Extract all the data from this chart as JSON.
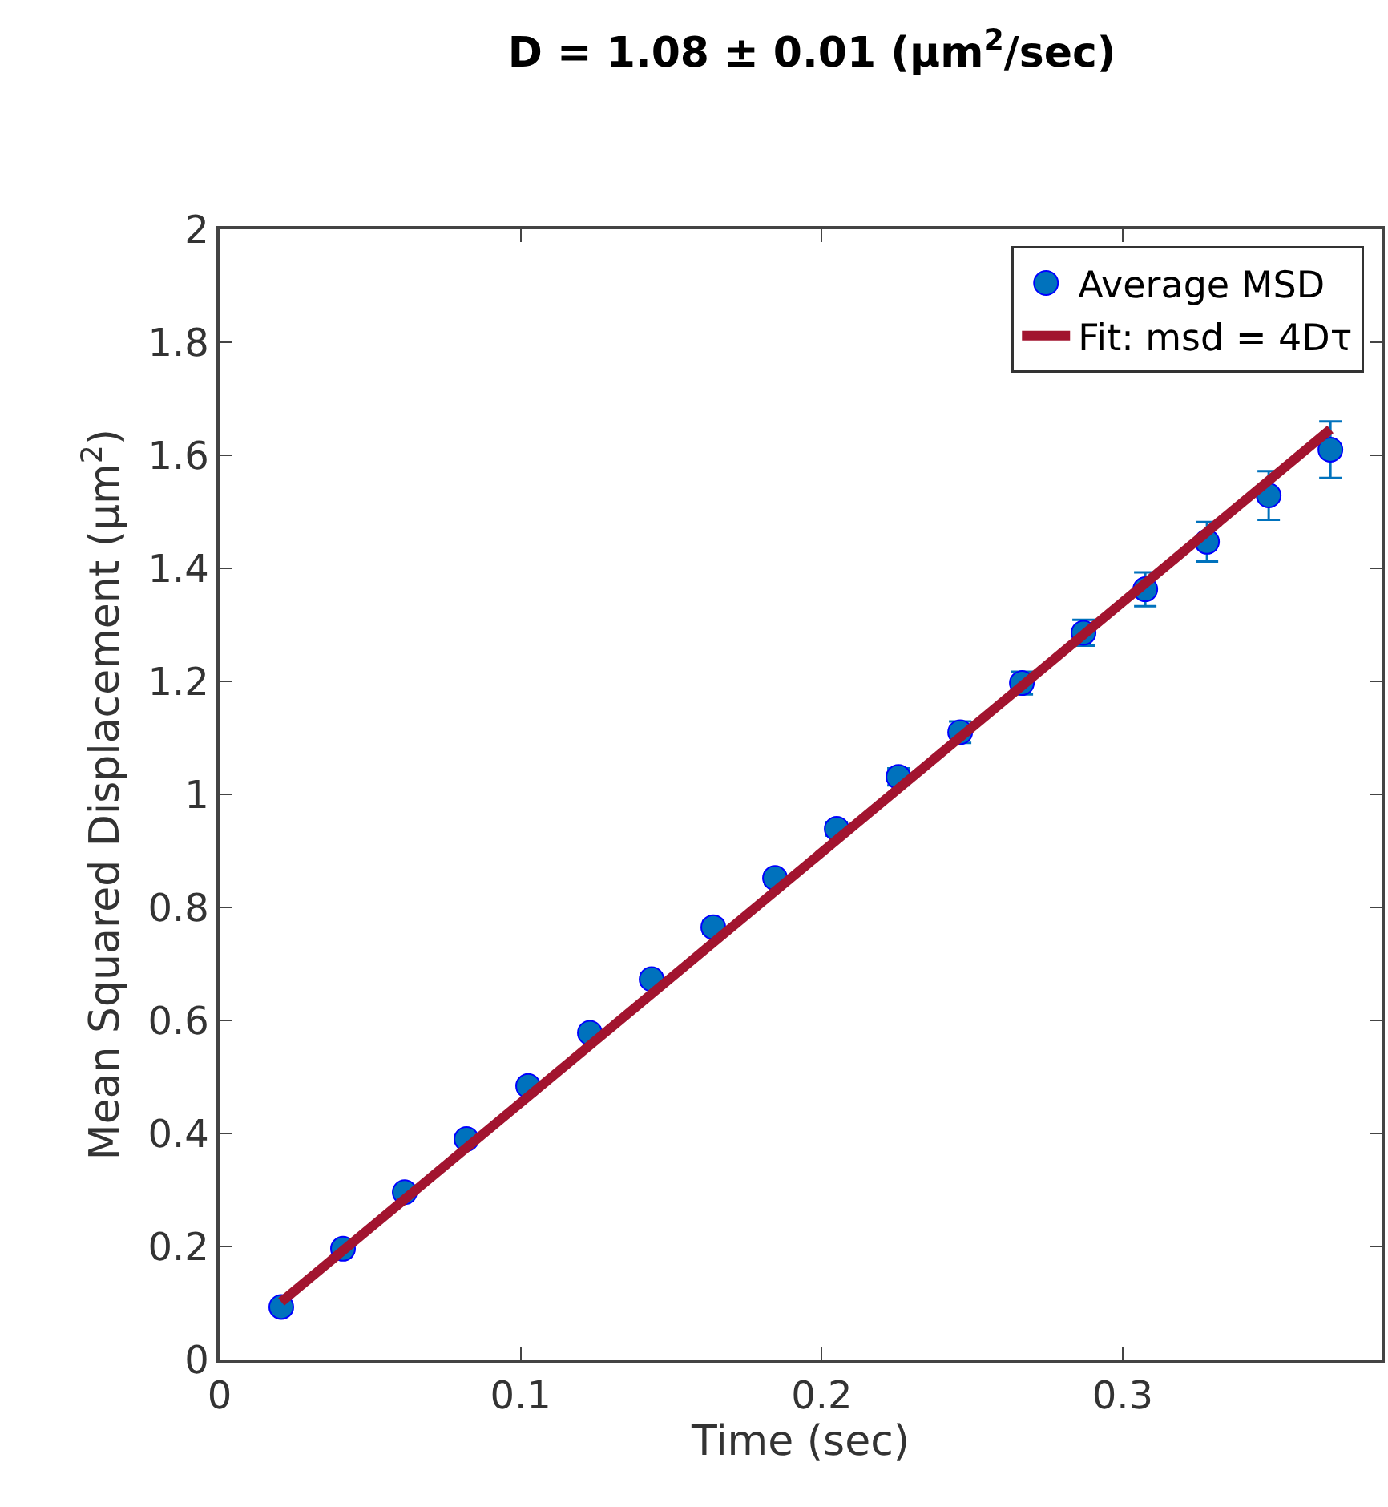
{
  "chart_data": {
    "type": "scatter",
    "title": "D = 1.08 ± 0.01 (μm$^{2}$/sec)",
    "xlabel": "Time (sec)",
    "ylabel": "Mean Squared Displacement (μm$^{2}$)",
    "x": [
      0.0205,
      0.041,
      0.0615,
      0.082,
      0.1025,
      0.123,
      0.1435,
      0.164,
      0.1845,
      0.205,
      0.2255,
      0.246,
      0.2665,
      0.287,
      0.3075,
      0.328,
      0.3485,
      0.369
    ],
    "series": [
      {
        "name": "Average MSD",
        "color": "#0072bd",
        "marker": "circle",
        "values": [
          0.093,
          0.196,
          0.296,
          0.39,
          0.484,
          0.578,
          0.673,
          0.765,
          0.852,
          0.939,
          1.031,
          1.11,
          1.197,
          1.286,
          1.363,
          1.447,
          1.529,
          1.61
        ],
        "errors": [
          0.008,
          0.008,
          0.008,
          0.009,
          0.009,
          0.01,
          0.01,
          0.011,
          0.011,
          0.012,
          0.015,
          0.019,
          0.02,
          0.023,
          0.03,
          0.035,
          0.043,
          0.05
        ]
      },
      {
        "name": "Fit: msd = 4Dτ",
        "type": "line",
        "color": "#a2142f",
        "line_style": "solid",
        "x": [
          0.0205,
          0.369
        ],
        "values": [
          0.102,
          1.646
        ]
      }
    ],
    "xlim": [
      0,
      0.386
    ],
    "xticks": [
      0,
      0.1,
      0.2,
      0.3
    ],
    "ylim": [
      0,
      2
    ],
    "yticks": [
      0,
      0.2,
      0.4,
      0.6,
      0.8,
      1,
      1.2,
      1.4,
      1.6,
      1.8,
      2
    ],
    "grid": false,
    "legend": "top right"
  }
}
